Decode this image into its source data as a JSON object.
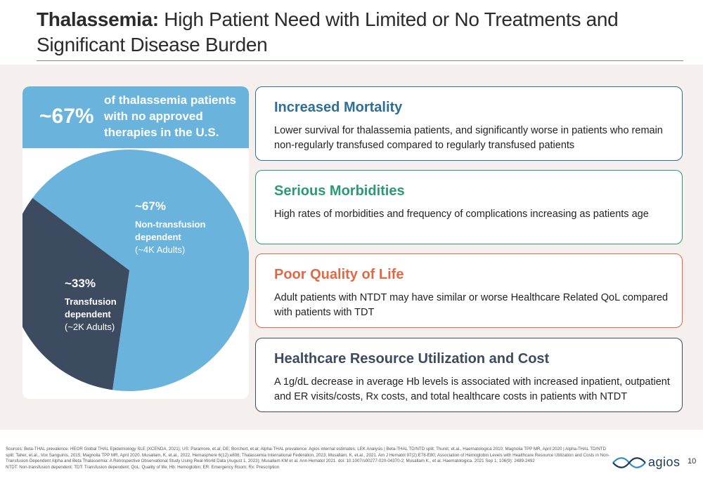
{
  "slide": {
    "title_bold": "Thalassemia:",
    "title_rest": " High Patient Need with Limited or No Treatments and Significant Disease Burden"
  },
  "left_panel": {
    "big_pct": "~67%",
    "header_text": "of thalassemia patients with no approved therapies in the U.S."
  },
  "chart_data": {
    "type": "pie",
    "title": "",
    "slices": [
      {
        "pct_label": "~67%",
        "name": "Non-transfusion dependent",
        "sub": "(~4K Adults)",
        "value": 67,
        "color": "#6ab3dc"
      },
      {
        "pct_label": "~33%",
        "name": "Transfusion dependent",
        "sub": "(~2K Adults)",
        "value": 33,
        "color": "#3d4b60"
      }
    ]
  },
  "cards": [
    {
      "title": "Increased Mortality",
      "body": "Lower survival for thalassemia patients, and significantly worse in patients who remain non-regularly transfused compared to regularly transfused patients",
      "color": "#2e6f97"
    },
    {
      "title": "Serious Morbidities",
      "body": "High rates of morbidities and frequency of complications increasing as patients age",
      "color": "#2a9a72"
    },
    {
      "title": "Poor Quality of Life",
      "body": "Adult patients with NTDT may have similar or worse Healthcare Related QoL compared with patients with TDT",
      "color": "#e06a45"
    },
    {
      "title": "Healthcare Resource Utilization and Cost",
      "body": "A 1g/dL decrease in average Hb levels is associated with increased inpatient, outpatient and ER visits/costs, Rx costs, and total healthcare costs in patients with NTDT",
      "color": "#3d4b60"
    }
  ],
  "footer": {
    "sources": "Sources: Beta-THAL prevalence: HEOR Global THAL Epidemiology SLE (XCENDA, 2021); US: Paramore, et.al; DE: Borchert, et.al; Alpha-THAL prevalence: Agios internal estimates; LEK Analysis | Beta-THAL TD/NTD split: Thuret, et.al., Haematologica 2010; Magnolia TPP MR, April 2020 | Alpha-THAL TD/NTD split: Taher, et.al., Vox Sanguinis, 2015; Magnolia TPP MR, April 2020. Musallam, K, et.al., 2022. Hemasphere 6(12):e806; Thalassemia International Federation, 2023; Musallam, K, et.al., 2021. Am J Hematol 97(2):E78-E80; Association of Hemoglobin Levels with Healthcare Resource Utilization and Costs in Non-Transfusion Dependent Alpha and Beta Thalassemia: A Retrospective Observational Study Using Real-World Data (August 1, 2023); Musallam KM et al. Ann Hematol 2021. doi: 10.1007/s00277-020-04370-2; Musallam K., et al. Haematologica. 2021 Sep 1; 106(9): 2489-2492",
    "abbrev": "NTDT: Non-transfusion dependent; TDT: Transfusion dependent; QoL: Quality of life; Hb: Hemoglobin; ER: Emergency Room; Rx: Prescription",
    "logo_text": "agios",
    "page_number": "10"
  }
}
